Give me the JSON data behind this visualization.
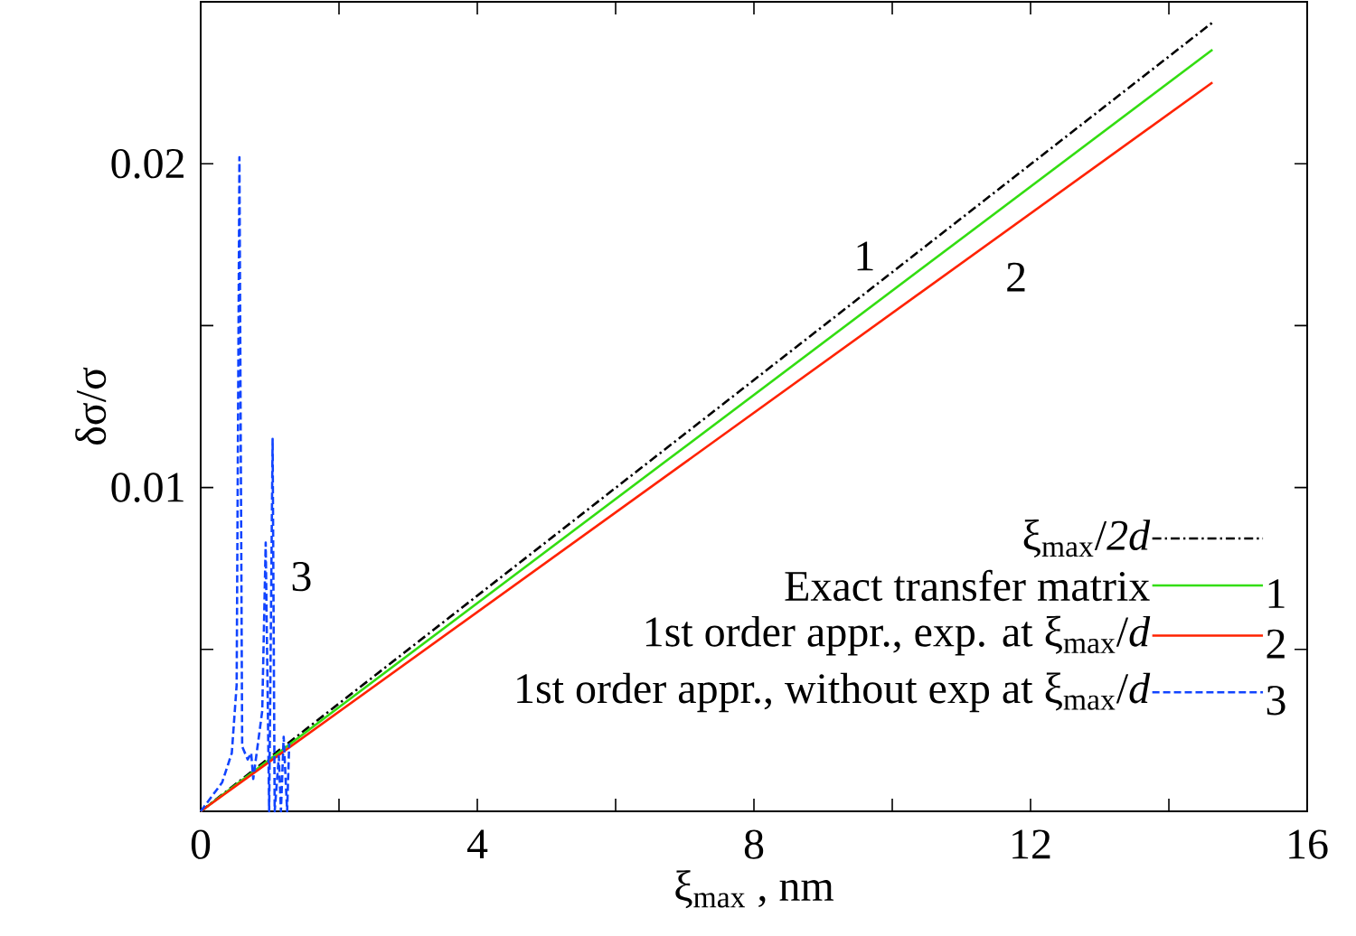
{
  "chart_data": {
    "type": "line",
    "xlabel": "ξ$_{max}$ , nm",
    "ylabel": "δσ/σ",
    "xlim": [
      0,
      16
    ],
    "ylim": [
      0,
      0.025
    ],
    "xticks": [
      0,
      {
        "value": 2,
        "label": null
      },
      4,
      {
        "value": 6,
        "label": null
      },
      8,
      {
        "value": 10,
        "label": null
      },
      12,
      {
        "value": 14,
        "label": null
      },
      16
    ],
    "yticks": [
      {
        "value": 0.005,
        "label": null
      },
      0.01,
      {
        "value": 0.015,
        "label": null
      },
      0.02
    ],
    "legend": "bottom right",
    "grid": false,
    "marker": "none",
    "series": [
      {
        "name": "ξ$_{max}$/*2d*",
        "color": "#000000",
        "line_style": "dashdot",
        "x": [
          0,
          14.63
        ],
        "values": [
          0,
          0.02436
        ]
      },
      {
        "name": "Exact transfer matrix",
        "color": "#33dd11",
        "line_style": "solid",
        "x": [
          0,
          14.63
        ],
        "values": [
          0,
          0.02352
        ]
      },
      {
        "name": "1st order appr., exp. at ξ$_{max}$/*d*",
        "color": "#ff2200",
        "line_style": "solid",
        "x": [
          0,
          14.63
        ],
        "values": [
          0,
          0.02251
        ]
      },
      {
        "name": "1st order appr., without exp at ξ$_{max}$/*d*",
        "color": "#1144ff",
        "line_style": "dashed",
        "x": [
          0,
          0.31,
          0.45,
          0.52,
          0.56,
          0.6,
          0.68,
          0.73,
          0.76,
          0.89,
          0.94,
          0.99,
          1.04,
          1.07,
          1.13,
          1.16,
          1.2,
          1.25,
          1.28
        ],
        "values": [
          0,
          0.00089,
          0.0018,
          0.0039,
          0.0202,
          0.002,
          0.0016,
          0.0018,
          0.001,
          0.0031,
          0.0083,
          0,
          0.0115,
          0,
          0.0017,
          0,
          0.0023,
          0,
          0.0021
        ]
      }
    ],
    "annotations": [
      "1",
      "2",
      "3",
      "1",
      "2",
      "3"
    ]
  }
}
